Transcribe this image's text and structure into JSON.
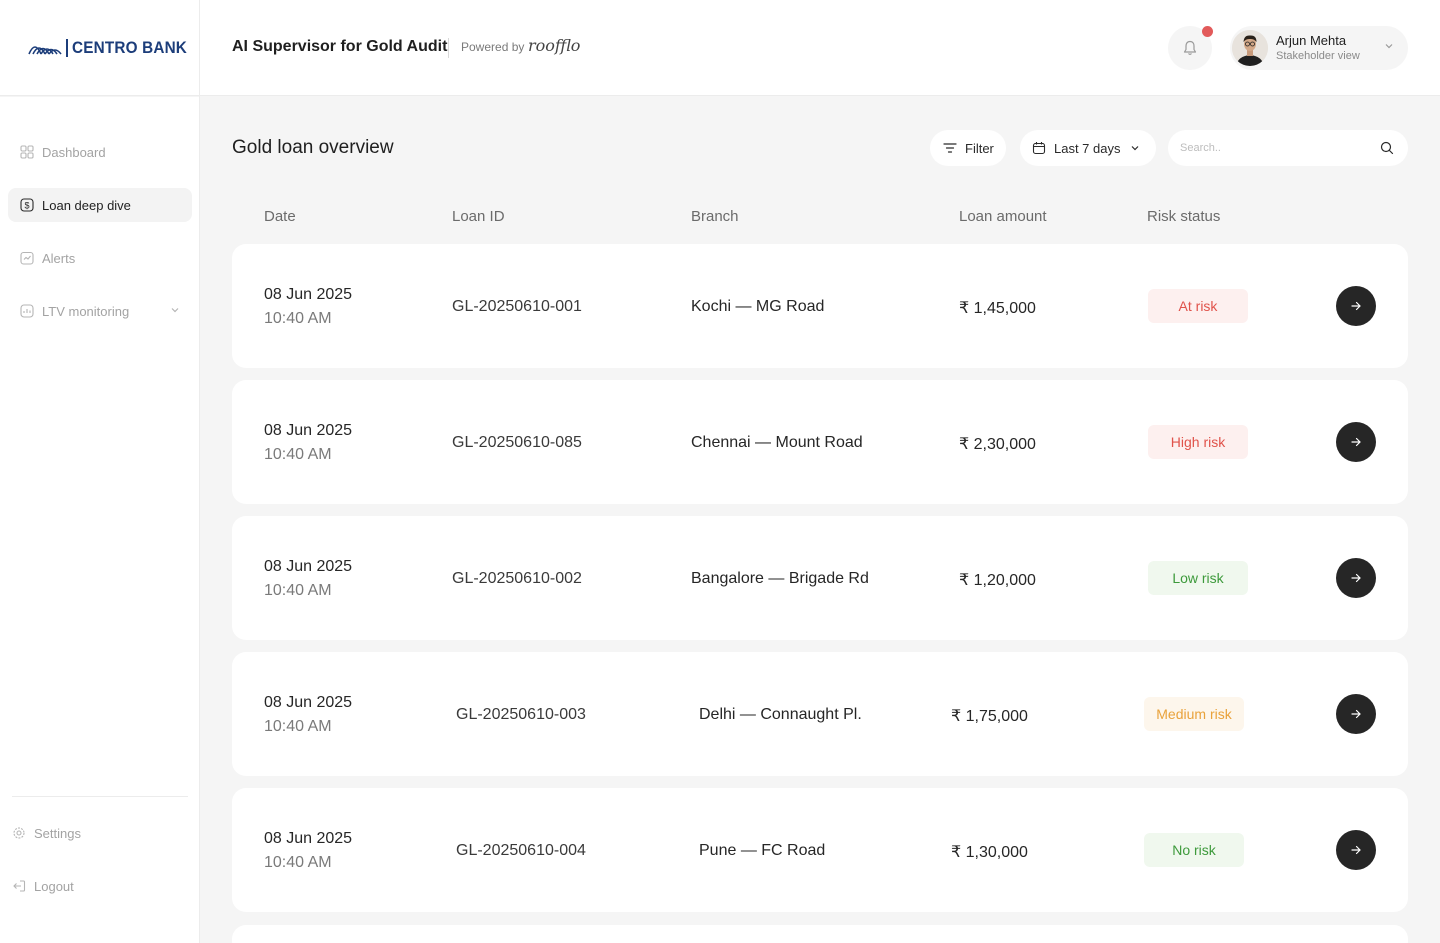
{
  "brand": {
    "logo_text": "CENTRO BANK",
    "logo_color": "#1c3d7a"
  },
  "header": {
    "app_title": "AI Supervisor for Gold Audit",
    "powered_by": "Powered by",
    "powered_brand": "roofflo",
    "notification_icon": "bell-icon",
    "notification_dot_color": "#e25a5a",
    "user": {
      "name": "Arjun Mehta",
      "role": "Stakeholder view"
    }
  },
  "sidebar": {
    "items": [
      {
        "label": "Dashboard",
        "icon": "grid-icon",
        "active": false
      },
      {
        "label": "Loan deep dive",
        "icon": "dollar-icon",
        "active": true
      },
      {
        "label": "Alerts",
        "icon": "alert-icon",
        "active": false
      },
      {
        "label": "LTV monitoring",
        "icon": "chart-icon",
        "active": false
      }
    ],
    "footer": [
      {
        "label": "Settings",
        "icon": "gear-icon"
      },
      {
        "label": "Logout",
        "icon": "logout-icon"
      }
    ]
  },
  "main": {
    "title": "Gold loan overview",
    "filter_label": "Filter",
    "date_range": "Last 7 days",
    "search_placeholder": "Search..",
    "columns": [
      "Date",
      "Loan ID",
      "Branch",
      "Loan amount",
      "Risk status"
    ],
    "rows": [
      {
        "date": "08 Jun 2025",
        "time": "10:40 AM",
        "loan_id": "GL-20250610-001",
        "branch": "Kochi — MG Road",
        "amount": "₹ 1,45,000",
        "risk": "At risk",
        "risk_color": "#e0524a",
        "risk_bg": "#fdf0ef"
      },
      {
        "date": "08 Jun 2025",
        "time": "10:40 AM",
        "loan_id": "GL-20250610-085",
        "branch": "Chennai — Mount Road",
        "amount": "₹ 2,30,000",
        "risk": "High risk",
        "risk_color": "#e0524a",
        "risk_bg": "#fdf0ef"
      },
      {
        "date": "08 Jun 2025",
        "time": "10:40 AM",
        "loan_id": "GL-20250610-002",
        "branch": "Bangalore — Brigade Rd",
        "amount": "₹ 1,20,000",
        "risk": "Low risk",
        "risk_color": "#3d9a3b",
        "risk_bg": "#f0f8ee"
      },
      {
        "date": "08 Jun 2025",
        "time": "10:40 AM",
        "loan_id": "GL-20250610-003",
        "branch": "Delhi — Connaught Pl.",
        "amount": "₹ 1,75,000",
        "risk": "Medium risk",
        "risk_color": "#e9a23b",
        "risk_bg": "#fdf6ec"
      },
      {
        "date": "08 Jun 2025",
        "time": "10:40 AM",
        "loan_id": "GL-20250610-004",
        "branch": "Pune — FC Road",
        "amount": "₹ 1,30,000",
        "risk": "No risk",
        "risk_color": "#3d9a3b",
        "risk_bg": "#f0f8ee"
      }
    ]
  }
}
